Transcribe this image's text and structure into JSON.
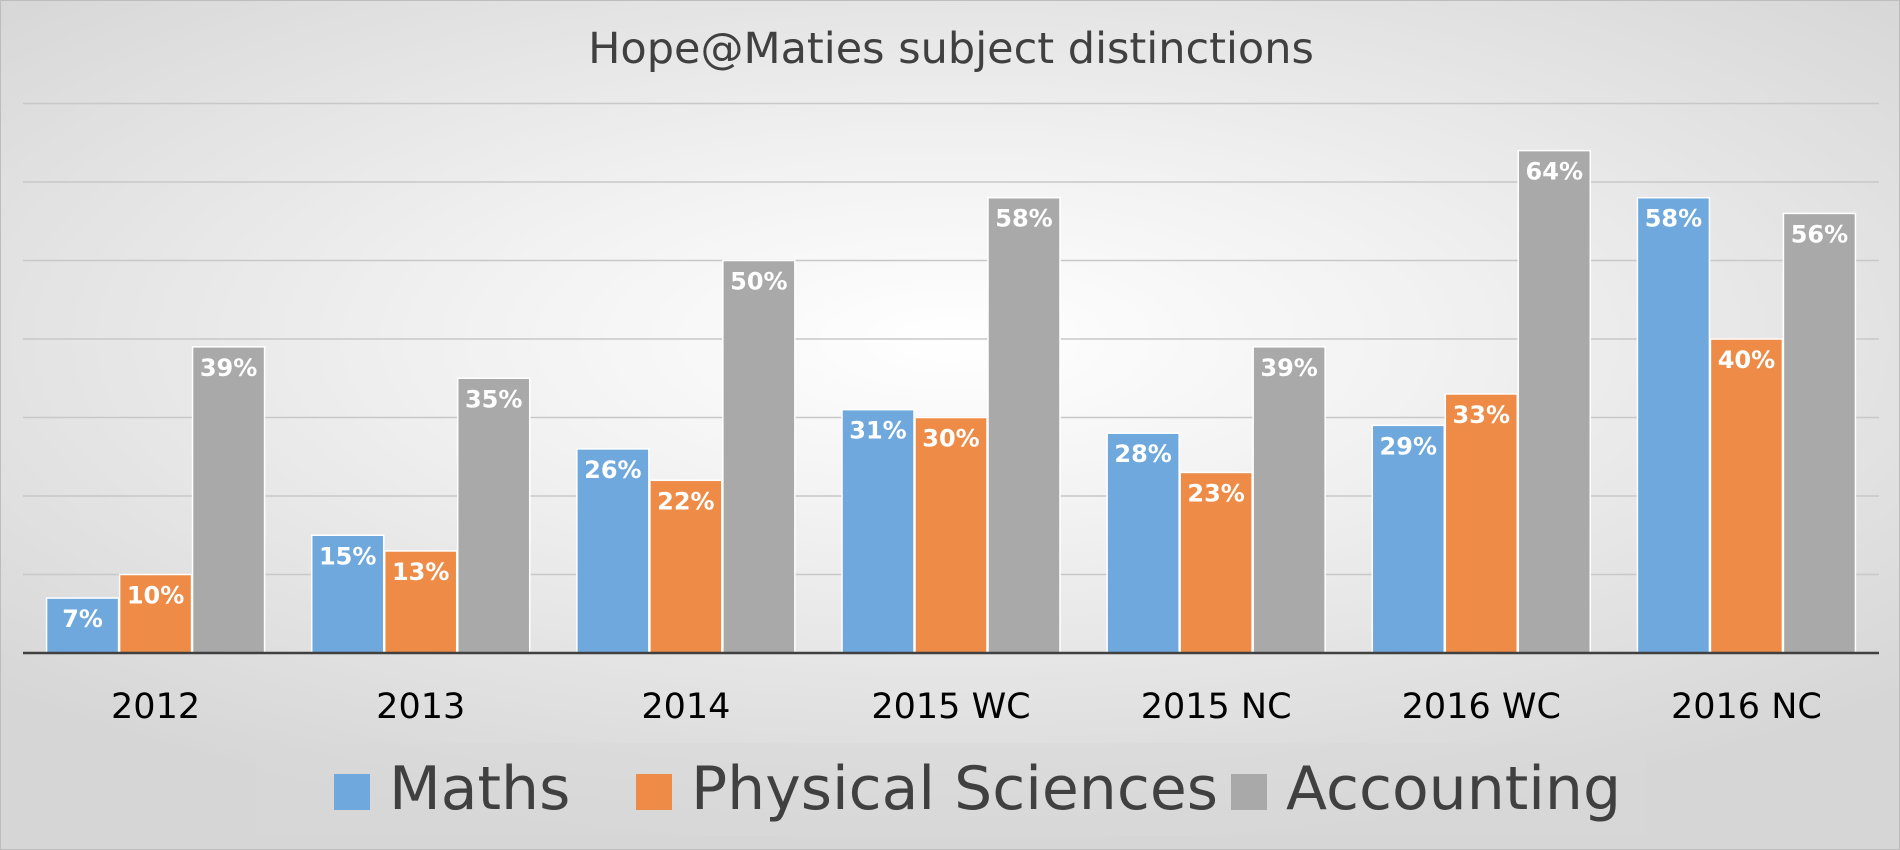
{
  "chart_data": {
    "type": "bar",
    "title": "Hope@Maties subject distinctions",
    "categories": [
      "2012",
      "2013",
      "2014",
      "2015 WC",
      "2015 NC",
      "2016 WC",
      "2016 NC"
    ],
    "series": [
      {
        "name": "Maths",
        "color": "#6fa8dc",
        "values": [
          7,
          15,
          26,
          31,
          28,
          29,
          58
        ]
      },
      {
        "name": "Physical Sciences",
        "color": "#ed8b47",
        "values": [
          10,
          13,
          22,
          30,
          23,
          33,
          40
        ]
      },
      {
        "name": "Accounting",
        "color": "#a9a9a9",
        "values": [
          39,
          35,
          50,
          58,
          39,
          64,
          56
        ]
      }
    ],
    "value_suffix": "%",
    "ylim": [
      0,
      70
    ],
    "gridlines": true,
    "y_tick_labels_shown": false,
    "legend_position": "bottom"
  }
}
